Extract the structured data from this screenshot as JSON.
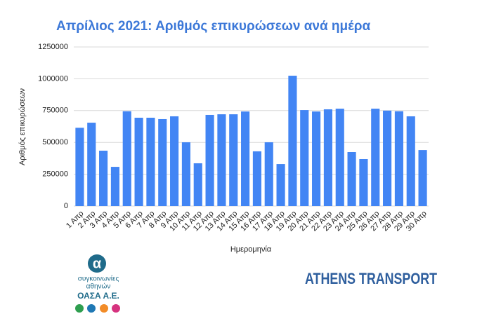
{
  "chart_data": {
    "type": "bar",
    "title": "Απρίλιος 2021: Αριθμός επικυρώσεων ανά ημέρα",
    "x_label": "Ημερομηνία",
    "y_label": "Αριθμός επικυρώσεων",
    "categories": [
      "1 Απρ",
      "2 Απρ",
      "3 Απρ",
      "4 Απρ",
      "5 Απρ",
      "6 Απρ",
      "7 Απρ",
      "8 Απρ",
      "9 Απρ",
      "10 Απρ",
      "11 Απρ",
      "12 Απρ",
      "13 Απρ",
      "14 Απρ",
      "15 Απρ",
      "16 Απρ",
      "17 Απρ",
      "18 Απρ",
      "19 Απρ",
      "20 Απρ",
      "21 Απρ",
      "22 Απρ",
      "23 Απρ",
      "24 Απρ",
      "25 Απρ",
      "26 Απρ",
      "27 Απρ",
      "28 Απρ",
      "29 Απρ",
      "30 Απρ"
    ],
    "values": [
      615000,
      655000,
      435000,
      308000,
      745000,
      694000,
      694000,
      683000,
      705000,
      501000,
      336000,
      716000,
      721000,
      721000,
      743000,
      430000,
      501000,
      330000,
      1024000,
      754000,
      743000,
      760000,
      765000,
      424000,
      369000,
      765000,
      750000,
      745000,
      705000,
      440000
    ],
    "color": "#4285f4",
    "ylim": [
      0,
      1250000
    ],
    "yticks": [
      0,
      250000,
      500000,
      750000,
      1000000,
      1250000
    ],
    "grid": true
  },
  "branding": {
    "oasa_line1": "συγκοινωνίες",
    "oasa_line2": "αθηνών",
    "oasa_name": "ΟΑΣΑ Α.Ε.",
    "athens_transport": "ATHENS TRANSPORT"
  }
}
